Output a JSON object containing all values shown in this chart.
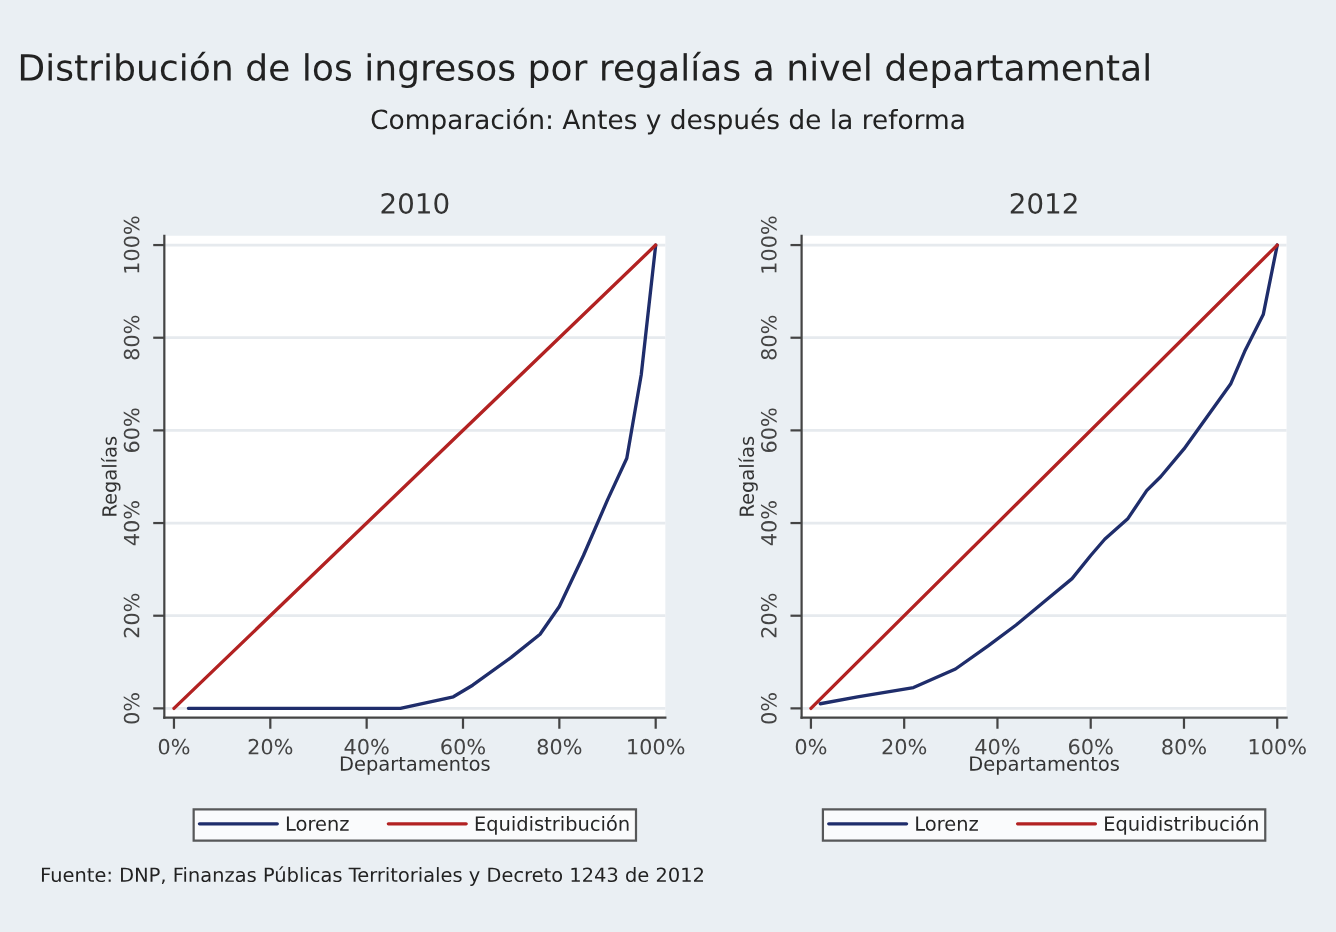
{
  "chart_data": [
    {
      "type": "line",
      "title": "2010",
      "xlabel": "Departamentos",
      "ylabel": "Regalías",
      "annotations": [
        "Distribución de los ingresos por regalías a nivel departamental",
        "Comparación: Antes y después de la reforma",
        "Fuente: DNP, Finanzas Públicas Territoriales y Decreto 1243 de 2012"
      ],
      "series": [
        {
          "name": "Lorenz",
          "color": "#1f2d6b",
          "x": [
            3,
            47,
            58,
            62,
            70,
            76,
            80,
            85,
            90,
            94,
            97,
            100
          ],
          "values": [
            0,
            0,
            2.5,
            5,
            11,
            16,
            22,
            33,
            45,
            54,
            72,
            100
          ]
        },
        {
          "name": "Equidistribución",
          "color": "#b22222",
          "x": [
            0,
            100
          ],
          "values": [
            0,
            100
          ]
        }
      ],
      "xlim": [
        -2,
        102
      ],
      "ylim": [
        -2,
        102
      ],
      "xticks": [
        {
          "value": 0,
          "label": "0%"
        },
        {
          "value": 20,
          "label": "20%"
        },
        {
          "value": 40,
          "label": "40%"
        },
        {
          "value": 60,
          "label": "60%"
        },
        {
          "value": 80,
          "label": "80%"
        },
        {
          "value": 100,
          "label": "100%"
        }
      ],
      "yticks": [
        {
          "value": 0,
          "label": "0%"
        },
        {
          "value": 20,
          "label": "20%"
        },
        {
          "value": 40,
          "label": "40%"
        },
        {
          "value": 60,
          "label": "60%"
        },
        {
          "value": 80,
          "label": "80%"
        },
        {
          "value": 100,
          "label": "100%"
        }
      ],
      "grid": "y",
      "legend": "bottom",
      "line_style": "solid"
    },
    {
      "type": "line",
      "title": "2012",
      "xlabel": "Departamentos",
      "ylabel": "Regalías",
      "series": [
        {
          "name": "Lorenz",
          "color": "#1f2d6b",
          "x": [
            2,
            10,
            22,
            31,
            38,
            44,
            50,
            56,
            60,
            63,
            68,
            72,
            75,
            80,
            85,
            90,
            93,
            97,
            100
          ],
          "values": [
            1,
            2.5,
            4.5,
            8.5,
            13.5,
            18,
            23,
            28,
            33,
            36.5,
            41,
            47,
            50,
            56,
            63,
            70,
            77,
            85,
            100
          ]
        },
        {
          "name": "Equidistribución",
          "color": "#b22222",
          "x": [
            0,
            100
          ],
          "values": [
            0,
            100
          ]
        }
      ],
      "xlim": [
        -2,
        102
      ],
      "ylim": [
        -2,
        102
      ],
      "xticks": [
        {
          "value": 0,
          "label": "0%"
        },
        {
          "value": 20,
          "label": "20%"
        },
        {
          "value": 40,
          "label": "40%"
        },
        {
          "value": 60,
          "label": "60%"
        },
        {
          "value": 80,
          "label": "80%"
        },
        {
          "value": 100,
          "label": "100%"
        }
      ],
      "yticks": [
        {
          "value": 0,
          "label": "0%"
        },
        {
          "value": 20,
          "label": "20%"
        },
        {
          "value": 40,
          "label": "40%"
        },
        {
          "value": 60,
          "label": "60%"
        },
        {
          "value": 80,
          "label": "80%"
        },
        {
          "value": 100,
          "label": "100%"
        }
      ],
      "grid": "y",
      "legend": "bottom",
      "line_style": "solid"
    }
  ]
}
